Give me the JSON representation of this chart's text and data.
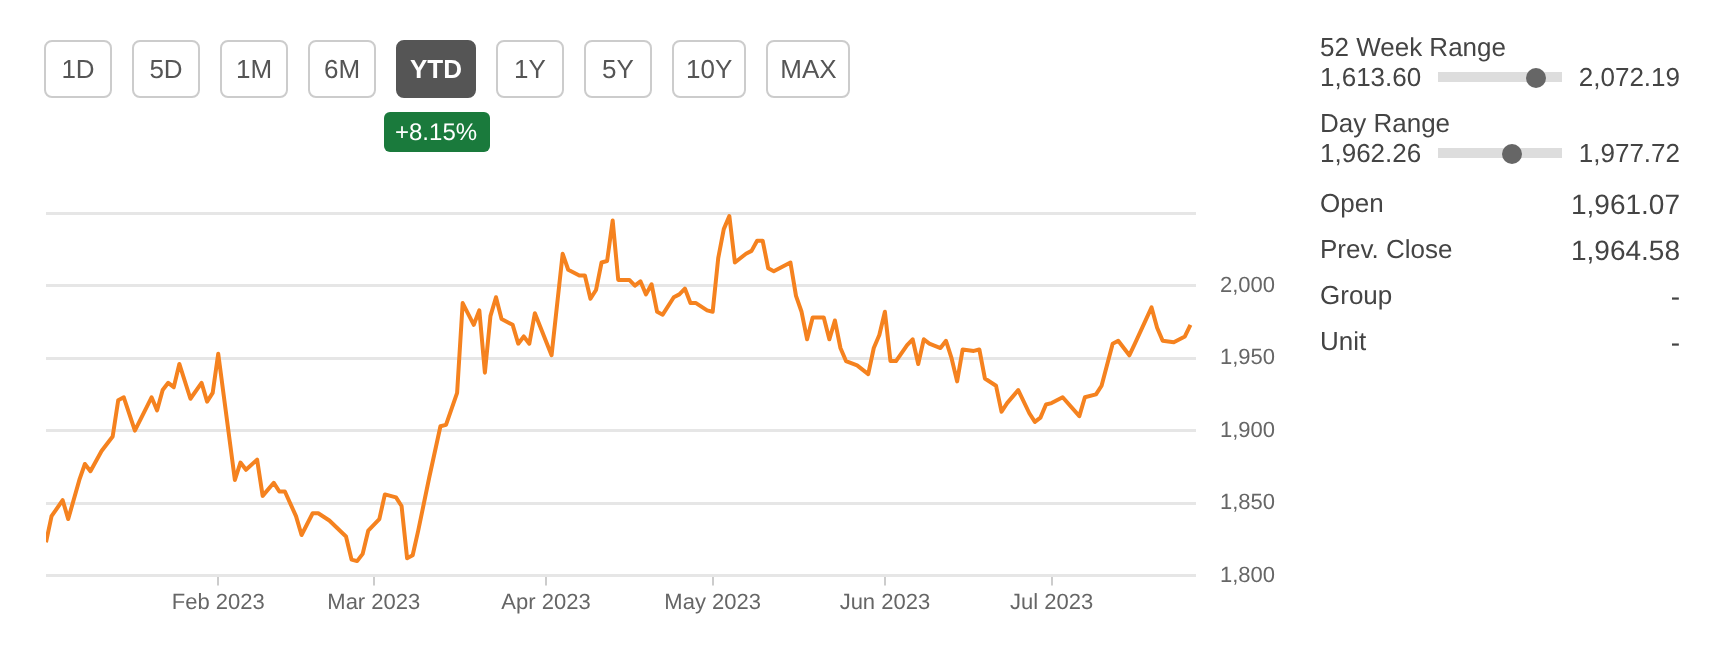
{
  "chart_data": {
    "type": "line",
    "x": [
      "2023-01-01",
      "2023-01-02",
      "2023-01-04",
      "2023-01-05",
      "2023-01-07",
      "2023-01-08",
      "2023-01-09",
      "2023-01-11",
      "2023-01-13",
      "2023-01-14",
      "2023-01-15",
      "2023-01-17",
      "2023-01-20",
      "2023-01-21",
      "2023-01-22",
      "2023-01-23",
      "2023-01-24",
      "2023-01-25",
      "2023-01-27",
      "2023-01-29",
      "2023-01-30",
      "2023-01-31",
      "2023-02-01",
      "2023-02-04",
      "2023-02-05",
      "2023-02-06",
      "2023-02-08",
      "2023-02-09",
      "2023-02-11",
      "2023-02-12",
      "2023-02-13",
      "2023-02-15",
      "2023-02-16",
      "2023-02-18",
      "2023-02-19",
      "2023-02-21",
      "2023-02-24",
      "2023-02-25",
      "2023-02-26",
      "2023-02-27",
      "2023-02-28",
      "2023-03-02",
      "2023-03-03",
      "2023-03-05",
      "2023-03-06",
      "2023-03-07",
      "2023-03-08",
      "2023-03-09",
      "2023-03-11",
      "2023-03-13",
      "2023-03-14",
      "2023-03-16",
      "2023-03-17",
      "2023-03-19",
      "2023-03-20",
      "2023-03-21",
      "2023-03-22",
      "2023-03-23",
      "2023-03-24",
      "2023-03-26",
      "2023-03-27",
      "2023-03-28",
      "2023-03-29",
      "2023-03-30",
      "2023-04-02",
      "2023-04-04",
      "2023-04-05",
      "2023-04-07",
      "2023-04-08",
      "2023-04-09",
      "2023-04-10",
      "2023-04-11",
      "2023-04-12",
      "2023-04-13",
      "2023-04-14",
      "2023-04-16",
      "2023-04-17",
      "2023-04-18",
      "2023-04-19",
      "2023-04-20",
      "2023-04-21",
      "2023-04-22",
      "2023-04-24",
      "2023-04-25",
      "2023-04-26",
      "2023-04-27",
      "2023-04-28",
      "2023-04-30",
      "2023-05-01",
      "2023-05-02",
      "2023-05-03",
      "2023-05-04",
      "2023-05-05",
      "2023-05-07",
      "2023-05-08",
      "2023-05-09",
      "2023-05-10",
      "2023-05-11",
      "2023-05-12",
      "2023-05-15",
      "2023-05-16",
      "2023-05-17",
      "2023-05-18",
      "2023-05-19",
      "2023-05-21",
      "2023-05-22",
      "2023-05-23",
      "2023-05-24",
      "2023-05-25",
      "2023-05-27",
      "2023-05-29",
      "2023-05-30",
      "2023-05-31",
      "2023-06-01",
      "2023-06-02",
      "2023-06-03",
      "2023-06-05",
      "2023-06-06",
      "2023-06-07",
      "2023-06-08",
      "2023-06-09",
      "2023-06-11",
      "2023-06-12",
      "2023-06-13",
      "2023-06-14",
      "2023-06-15",
      "2023-06-17",
      "2023-06-18",
      "2023-06-19",
      "2023-06-21",
      "2023-06-22",
      "2023-06-23",
      "2023-06-25",
      "2023-06-27",
      "2023-06-28",
      "2023-06-29",
      "2023-06-30",
      "2023-07-01",
      "2023-07-03",
      "2023-07-06",
      "2023-07-07",
      "2023-07-09",
      "2023-07-10",
      "2023-07-12",
      "2023-07-13",
      "2023-07-15",
      "2023-07-16",
      "2023-07-19",
      "2023-07-20",
      "2023-07-21",
      "2023-07-23",
      "2023-07-25",
      "2023-07-26"
    ],
    "series": [
      {
        "color": "#f5821f",
        "values": [
          1823,
          1841,
          1852,
          1839,
          1866,
          1877,
          1872,
          1886,
          1896,
          1921,
          1923,
          1900,
          1923,
          1914,
          1928,
          1933,
          1930,
          1946,
          1922,
          1933,
          1920,
          1926,
          1953,
          1866,
          1878,
          1873,
          1880,
          1855,
          1864,
          1858,
          1858,
          1841,
          1828,
          1843,
          1843,
          1838,
          1827,
          1811,
          1810,
          1815,
          1831,
          1839,
          1856,
          1854,
          1848,
          1812,
          1814,
          1831,
          1868,
          1903,
          1904,
          1926,
          1988,
          1973,
          1983,
          1940,
          1979,
          1992,
          1977,
          1973,
          1960,
          1965,
          1960,
          1981,
          1952,
          2022,
          2011,
          2007,
          2007,
          1991,
          1997,
          2016,
          2017,
          2045,
          2004,
          2004,
          2000,
          2003,
          1994,
          2001,
          1982,
          1980,
          1992,
          1994,
          1998,
          1988,
          1988,
          1983,
          1982,
          2019,
          2039,
          2048,
          2016,
          2022,
          2024,
          2031,
          2031,
          2012,
          2010,
          2016,
          1993,
          1982,
          1963,
          1978,
          1978,
          1963,
          1976,
          1957,
          1948,
          1945,
          1939,
          1957,
          1966,
          1982,
          1948,
          1948,
          1959,
          1963,
          1946,
          1963,
          1960,
          1957,
          1962,
          1950,
          1934,
          1956,
          1955,
          1956,
          1936,
          1931,
          1913,
          1919,
          1928,
          1912,
          1906,
          1909,
          1918,
          1919,
          1923,
          1910,
          1923,
          1925,
          1931,
          1960,
          1962,
          1952,
          1960,
          1985,
          1971,
          1962,
          1961,
          1965,
          1973
        ]
      }
    ],
    "xlim": [
      "2023-01-01",
      "2023-07-27"
    ],
    "xticks": [
      {
        "value": "2023-02-01",
        "label": "Feb 2023"
      },
      {
        "value": "2023-03-01",
        "label": "Mar 2023"
      },
      {
        "value": "2023-04-01",
        "label": "Apr 2023"
      },
      {
        "value": "2023-05-01",
        "label": "May 2023"
      },
      {
        "value": "2023-06-01",
        "label": "Jun 2023"
      },
      {
        "value": "2023-07-01",
        "label": "Jul 2023"
      }
    ],
    "ylim": [
      1800,
      2050
    ],
    "yticks": [
      {
        "value": 1800,
        "label": "1,800"
      },
      {
        "value": 1850,
        "label": "1,850"
      },
      {
        "value": 1900,
        "label": "1,900"
      },
      {
        "value": 1950,
        "label": "1,950"
      },
      {
        "value": 2000,
        "label": "2,000"
      },
      {
        "value": 2050,
        "label": null
      }
    ],
    "grid": "y",
    "legend": false,
    "marker": "none",
    "line_style": "solid",
    "annotations": [
      "1D",
      "5D",
      "1M",
      "6M",
      "YTD",
      "1Y",
      "5Y",
      "10Y",
      "MAX",
      "+8.15%",
      "52 Week Range",
      "1,613.60",
      "2,072.19",
      "Day Range",
      "1,962.26",
      "1,977.72",
      "Open",
      "1,961.07",
      "Prev. Close",
      "1,964.58",
      "Group",
      "-",
      "Unit",
      "-"
    ]
  }
}
